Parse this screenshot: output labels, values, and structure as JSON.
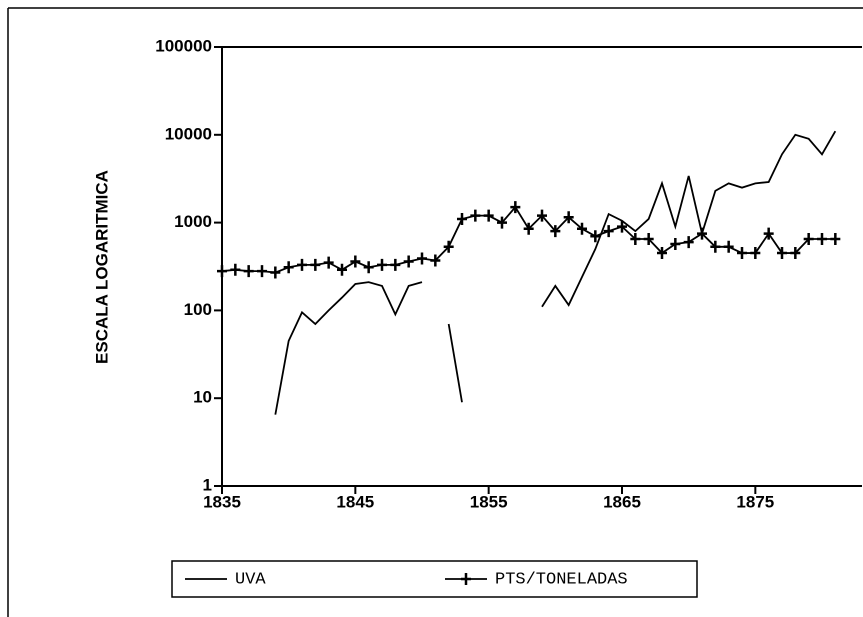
{
  "chart_data": {
    "type": "line",
    "y_label": "ESCALA LOGARITMICA",
    "log_scale": true,
    "xlim": [
      1835,
      1883
    ],
    "xticks": [
      1835,
      1845,
      1855,
      1865,
      1875
    ],
    "ylim": [
      1,
      100000
    ],
    "yticks": [
      1,
      10,
      100,
      1000,
      10000,
      100000
    ],
    "x": [
      1835,
      1836,
      1837,
      1838,
      1839,
      1840,
      1841,
      1842,
      1843,
      1844,
      1845,
      1846,
      1847,
      1848,
      1849,
      1850,
      1851,
      1852,
      1853,
      1854,
      1855,
      1856,
      1857,
      1858,
      1859,
      1860,
      1861,
      1862,
      1863,
      1864,
      1865,
      1866,
      1867,
      1868,
      1869,
      1870,
      1871,
      1872,
      1873,
      1874,
      1875,
      1876,
      1877,
      1878,
      1879,
      1880,
      1881
    ],
    "series": [
      {
        "name": "UVA",
        "color": "#000000",
        "marker": "none",
        "values": [
          null,
          null,
          null,
          null,
          6.5,
          45,
          95,
          70,
          100,
          140,
          200,
          210,
          190,
          90,
          190,
          210,
          null,
          70,
          9,
          null,
          null,
          null,
          null,
          null,
          110,
          190,
          115,
          240,
          500,
          1250,
          1050,
          800,
          1100,
          2800,
          900,
          3400,
          750,
          2300,
          2800,
          2500,
          2800,
          2900,
          6000,
          10000,
          9000,
          6000,
          11000
        ]
      },
      {
        "name": "PTS/TONELADAS",
        "color": "#000000",
        "marker": "+",
        "values": [
          280,
          290,
          280,
          280,
          270,
          310,
          330,
          330,
          350,
          290,
          360,
          310,
          330,
          330,
          360,
          390,
          370,
          530,
          1100,
          1200,
          1200,
          1000,
          1500,
          850,
          1200,
          800,
          1150,
          850,
          700,
          800,
          900,
          650,
          650,
          450,
          570,
          600,
          750,
          530,
          530,
          450,
          450,
          750,
          450,
          450,
          650,
          650,
          650
        ]
      }
    ]
  }
}
